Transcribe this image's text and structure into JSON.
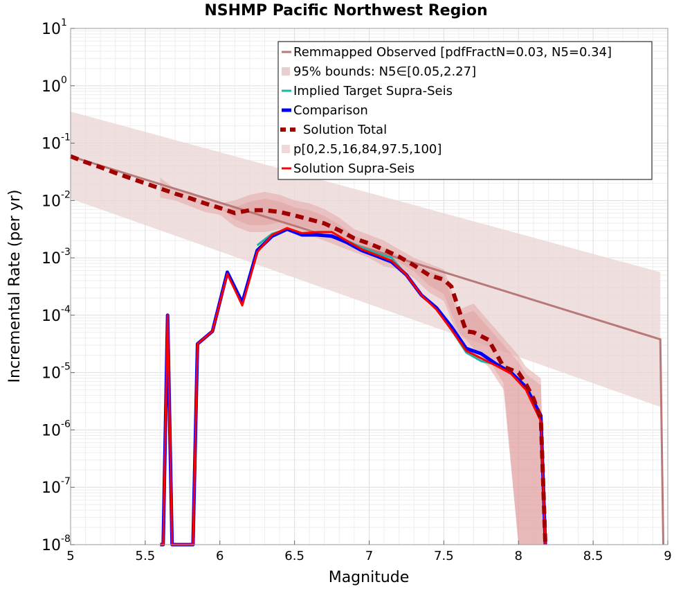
{
  "chart_data": {
    "type": "line",
    "title": "NSHMP Pacific Northwest Region",
    "xlabel": "Magnitude",
    "ylabel": "Incremental Rate (per yr)",
    "xlim": [
      5,
      9
    ],
    "ylim_log10": [
      -8,
      1
    ],
    "yscale": "log",
    "grid": true,
    "legend_position": "top-right",
    "xticks": [
      5,
      5.5,
      6,
      6.5,
      7,
      7.5,
      8,
      8.5,
      9
    ],
    "xtick_labels": [
      "5",
      "5.5",
      "6",
      "6.5",
      "7",
      "7.5",
      "8",
      "8.5",
      "9"
    ],
    "ytick_exponents": [
      1,
      0,
      -1,
      -2,
      -3,
      -4,
      -5,
      -6,
      -7,
      -8
    ],
    "ytick_base": "10",
    "legend": [
      {
        "label": "Remmapped Observed [pdfFractN=0.03, N5=0.34]",
        "color": "#b87878",
        "kind": "line"
      },
      {
        "label": "95% bounds: N5∈[0.05,2.27]",
        "color": "#e8cfcf",
        "kind": "band"
      },
      {
        "label": "Implied Target Supra-Seis",
        "color": "#20b2aa",
        "kind": "line"
      },
      {
        "label": "Comparison",
        "color": "#0000ff",
        "kind": "line"
      },
      {
        "label": "Solution Total",
        "color": "#a00000",
        "kind": "dashed"
      },
      {
        "label": "p[0,2.5,16,84,97.5,100]",
        "color": "#f0d8d8",
        "kind": "band"
      },
      {
        "label": "Solution Supra-Seis",
        "color": "#ff0000",
        "kind": "line"
      }
    ],
    "series": {
      "observed": {
        "x": [
          5.0,
          8.95,
          8.97
        ],
        "log10y": [
          -1.23,
          -4.42,
          -8.0
        ]
      },
      "observed_bounds": {
        "x": [
          5.0,
          8.95
        ],
        "upper_log10": [
          -0.45,
          -3.25
        ],
        "lower_log10": [
          -1.97,
          -5.6
        ]
      },
      "solution_total": {
        "x": [
          5.0,
          5.1,
          5.2,
          5.3,
          5.4,
          5.5,
          5.6,
          5.7,
          5.8,
          5.9,
          6.0,
          6.1,
          6.2,
          6.3,
          6.4,
          6.5,
          6.6,
          6.7,
          6.8,
          6.9,
          7.0,
          7.1,
          7.2,
          7.3,
          7.4,
          7.5,
          7.55,
          7.6,
          7.65,
          7.7,
          7.8,
          7.9,
          8.0,
          8.05,
          8.1,
          8.15,
          8.18
        ],
        "log10y": [
          -1.23,
          -1.33,
          -1.42,
          -1.52,
          -1.61,
          -1.7,
          -1.79,
          -1.88,
          -1.96,
          -2.05,
          -2.13,
          -2.22,
          -2.17,
          -2.17,
          -2.2,
          -2.26,
          -2.33,
          -2.4,
          -2.52,
          -2.66,
          -2.75,
          -2.86,
          -2.98,
          -3.13,
          -3.3,
          -3.38,
          -3.5,
          -3.9,
          -4.28,
          -4.3,
          -4.43,
          -4.9,
          -5.0,
          -5.2,
          -5.45,
          -5.8,
          -8.0
        ]
      },
      "solution_total_band_outer": {
        "x": [
          5.6,
          5.7,
          5.8,
          5.9,
          6.0,
          6.1,
          6.2,
          6.3,
          6.4,
          6.5,
          6.6,
          6.7,
          6.8,
          6.9,
          7.0,
          7.1,
          7.2,
          7.3,
          7.4,
          7.5,
          7.6,
          7.7,
          7.8,
          7.9,
          8.0,
          8.05,
          8.1,
          8.15,
          8.18
        ],
        "upper_log10": [
          -1.6,
          -1.8,
          -1.85,
          -1.95,
          -2.05,
          -2.0,
          -1.9,
          -1.85,
          -1.9,
          -2.0,
          -2.05,
          -2.15,
          -2.3,
          -2.5,
          -2.6,
          -2.7,
          -2.85,
          -3.0,
          -3.1,
          -3.2,
          -3.9,
          -3.8,
          -4.1,
          -4.4,
          -4.7,
          -4.9,
          -5.0,
          -5.1,
          -8.0
        ],
        "lower_log10": [
          -1.95,
          -2.0,
          -2.1,
          -2.2,
          -2.25,
          -2.45,
          -2.55,
          -2.55,
          -2.5,
          -2.55,
          -2.6,
          -2.7,
          -2.8,
          -2.9,
          -3.0,
          -3.15,
          -3.2,
          -3.35,
          -3.6,
          -3.75,
          -4.4,
          -4.7,
          -4.9,
          -5.3,
          -8.0,
          -8.0,
          -8.0,
          -8.0,
          -8.0
        ]
      },
      "comparison": {
        "x": [
          5.6,
          5.62,
          5.65,
          5.68,
          5.72,
          5.82,
          5.85,
          5.95,
          6.05,
          6.15,
          6.25,
          6.35,
          6.45,
          6.55,
          6.65,
          6.75,
          6.85,
          6.95,
          7.05,
          7.15,
          7.25,
          7.35,
          7.45,
          7.55,
          7.65,
          7.75,
          7.85,
          7.95,
          8.05,
          8.15,
          8.18
        ],
        "log10y": [
          -8.0,
          -8.0,
          -4.0,
          -8.0,
          -8.0,
          -8.0,
          -4.5,
          -4.28,
          -3.25,
          -3.78,
          -2.87,
          -2.62,
          -2.5,
          -2.6,
          -2.6,
          -2.62,
          -2.73,
          -2.87,
          -2.97,
          -3.07,
          -3.3,
          -3.65,
          -3.87,
          -4.2,
          -4.58,
          -4.67,
          -4.85,
          -5.0,
          -5.25,
          -5.75,
          -8.0
        ]
      },
      "solution_supra_seis": {
        "x": [
          5.6,
          5.62,
          5.65,
          5.68,
          5.72,
          5.82,
          5.85,
          5.95,
          6.05,
          6.15,
          6.25,
          6.35,
          6.45,
          6.55,
          6.65,
          6.75,
          6.85,
          6.95,
          7.05,
          7.15,
          7.25,
          7.35,
          7.45,
          7.55,
          7.65,
          7.75,
          7.85,
          7.95,
          8.05,
          8.15,
          8.18
        ],
        "log10y": [
          -8.0,
          -8.0,
          -4.0,
          -8.0,
          -8.0,
          -8.0,
          -4.5,
          -4.28,
          -3.28,
          -3.83,
          -2.9,
          -2.6,
          -2.48,
          -2.57,
          -2.55,
          -2.55,
          -2.7,
          -2.85,
          -2.95,
          -3.05,
          -3.3,
          -3.65,
          -3.9,
          -4.25,
          -4.62,
          -4.75,
          -4.88,
          -5.02,
          -5.3,
          -5.85,
          -8.0
        ]
      },
      "implied_target": {
        "x": [
          6.25,
          6.35,
          6.45,
          6.55,
          6.65,
          6.75,
          6.85,
          6.95,
          7.05,
          7.15,
          7.25,
          7.35,
          7.45,
          7.55,
          7.65,
          7.75,
          7.85
        ],
        "log10y": [
          -2.78,
          -2.58,
          -2.5,
          -2.57,
          -2.6,
          -2.62,
          -2.7,
          -2.82,
          -2.92,
          -3.0,
          -3.3,
          -3.65,
          -3.9,
          -4.25,
          -4.65,
          -4.8,
          -4.86
        ]
      }
    }
  }
}
